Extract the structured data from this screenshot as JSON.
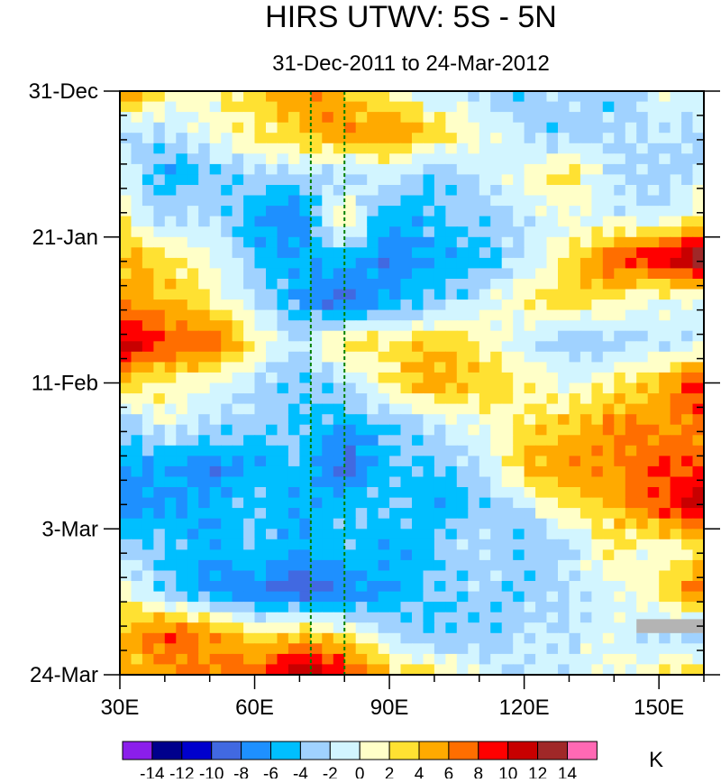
{
  "chart_data": {
    "type": "heatmap",
    "title": "HIRS UTWV: 5S - 5N",
    "subtitle": "31-Dec-2011 to 24-Mar-2012",
    "units_label": "K",
    "x_ticks": [
      {
        "value": 30,
        "label": "30E"
      },
      {
        "value": 60,
        "label": "60E"
      },
      {
        "value": 90,
        "label": "90E"
      },
      {
        "value": 120,
        "label": "120E"
      },
      {
        "value": 150,
        "label": "150E"
      }
    ],
    "y_ticks": [
      {
        "value": 0,
        "label": "31-Dec"
      },
      {
        "value": 21,
        "label": "21-Jan"
      },
      {
        "value": 42,
        "label": "11-Feb"
      },
      {
        "value": 63,
        "label": "3-Mar"
      },
      {
        "value": 84,
        "label": "24-Mar"
      }
    ],
    "xlim": [
      30,
      160
    ],
    "ylim_days": [
      0,
      84
    ],
    "reference_lines_lon": [
      72.5,
      80
    ],
    "missing_region": {
      "lon": [
        145,
        160
      ],
      "days": [
        76,
        78
      ]
    },
    "lon": [
      30,
      40,
      50,
      60,
      70,
      80,
      90,
      100,
      110,
      120,
      130,
      140,
      150,
      160
    ],
    "days": [
      0,
      6,
      12,
      18,
      24,
      30,
      36,
      42,
      48,
      54,
      60,
      66,
      72,
      78,
      84
    ],
    "values": [
      [
        8,
        2,
        1,
        4,
        6,
        4,
        1,
        -2,
        -2,
        -4,
        -2,
        -4,
        -1,
        0
      ],
      [
        -3,
        -2,
        0,
        2,
        4,
        6,
        6,
        4,
        0,
        -2,
        -4,
        -2,
        -2,
        -3
      ],
      [
        0,
        -6,
        -4,
        -3,
        -2,
        -3,
        -1,
        -4,
        -2,
        1,
        3,
        -2,
        -3,
        -2
      ],
      [
        2,
        -3,
        -2,
        -6,
        -8,
        3,
        -6,
        -4,
        -3,
        -2,
        0,
        -1,
        -2,
        2
      ],
      [
        4,
        3,
        0,
        -4,
        -6,
        -4,
        -8,
        -6,
        -5,
        -2,
        2,
        8,
        10,
        14
      ],
      [
        6,
        4,
        2,
        -2,
        -6,
        -10,
        -6,
        -4,
        -2,
        2,
        4,
        2,
        0,
        -1
      ],
      [
        12,
        8,
        8,
        2,
        -2,
        3,
        2,
        4,
        2,
        -2,
        -4,
        -3,
        -2,
        -2
      ],
      [
        4,
        2,
        0,
        -2,
        -4,
        -2,
        2,
        6,
        4,
        2,
        0,
        2,
        4,
        10
      ],
      [
        -4,
        0,
        -2,
        -3,
        -4,
        -6,
        -4,
        -2,
        0,
        2,
        4,
        6,
        6,
        6
      ],
      [
        -6,
        -6,
        -8,
        -6,
        -4,
        -10,
        -4,
        -4,
        -2,
        4,
        6,
        6,
        8,
        8
      ],
      [
        -8,
        -6,
        -6,
        -4,
        -6,
        -4,
        -4,
        -6,
        -4,
        -2,
        2,
        4,
        8,
        11
      ],
      [
        -2,
        -4,
        -6,
        -4,
        -6,
        -4,
        -6,
        -4,
        -2,
        -4,
        -2,
        2,
        0,
        2
      ],
      [
        2,
        -4,
        -6,
        -8,
        -10,
        -8,
        -6,
        -4,
        -3,
        -4,
        -2,
        -1,
        2,
        8
      ],
      [
        4,
        8,
        6,
        2,
        4,
        2,
        -2,
        -4,
        -4,
        -2,
        -2,
        0,
        -3,
        -4
      ],
      [
        4,
        6,
        6,
        8,
        12,
        10,
        4,
        2,
        0,
        -2,
        -1,
        0,
        2,
        4
      ]
    ],
    "colorbar": {
      "labels": [
        "-14",
        "-12",
        "-10",
        "-8",
        "-6",
        "-4",
        "-2",
        "0",
        "2",
        "4",
        "6",
        "8",
        "10",
        "12",
        "14"
      ],
      "levels": [
        -14,
        -12,
        -10,
        -8,
        -6,
        -4,
        -2,
        0,
        2,
        4,
        6,
        8,
        10,
        12,
        14
      ],
      "colors": [
        "#8B1EEB",
        "#00008C",
        "#0000CD",
        "#4169E1",
        "#1E90FF",
        "#00BFFF",
        "#A0D2FF",
        "#D2F5FF",
        "#FFFFC8",
        "#FFE132",
        "#FFAA00",
        "#FF6E00",
        "#FF0000",
        "#C80000",
        "#A02828",
        "#FF69B4"
      ]
    },
    "reference_line_color": "#008000",
    "missing_color": "#B4B4B4"
  }
}
